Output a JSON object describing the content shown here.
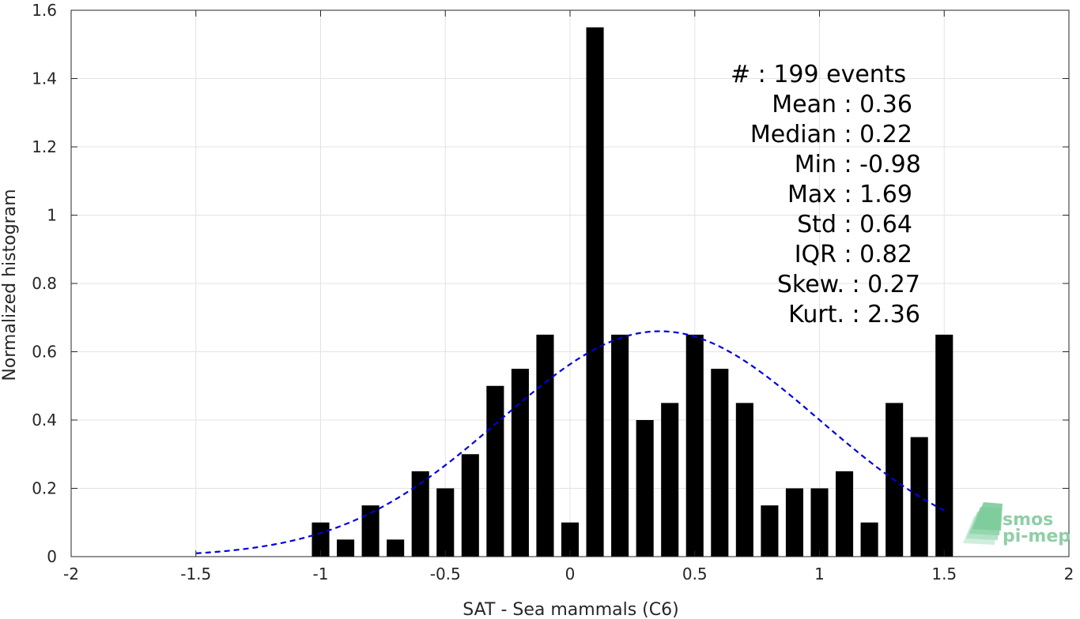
{
  "chart_data": {
    "type": "bar",
    "xlabel": "SAT - Sea mammals (C6)",
    "ylabel": "Normalized histogram",
    "xlim": [
      -2,
      2
    ],
    "ylim": [
      0,
      1.6
    ],
    "xticks": [
      -2,
      -1.5,
      -1,
      -0.5,
      0,
      0.5,
      1,
      1.5,
      2
    ],
    "xtick_labels": [
      "-2",
      "-1.5",
      "-1",
      "-0.5",
      "0",
      "0.5",
      "1",
      "1.5",
      "2"
    ],
    "yticks": [
      0,
      0.2,
      0.4,
      0.6,
      0.8,
      1,
      1.2,
      1.4,
      1.6
    ],
    "ytick_labels": [
      "0",
      "0.2",
      "0.4",
      "0.6",
      "0.8",
      "1",
      "1.2",
      "1.4",
      "1.6"
    ],
    "grid": true,
    "bar_width": 0.07,
    "bars": {
      "x": [
        -1.0,
        -0.9,
        -0.8,
        -0.7,
        -0.6,
        -0.5,
        -0.4,
        -0.3,
        -0.2,
        -0.1,
        0.0,
        0.1,
        0.2,
        0.3,
        0.4,
        0.5,
        0.6,
        0.7,
        0.8,
        0.9,
        1.0,
        1.1,
        1.2,
        1.3,
        1.4,
        1.5
      ],
      "values": [
        0.1,
        0.05,
        0.15,
        0.05,
        0.25,
        0.2,
        0.3,
        0.5,
        0.55,
        0.65,
        0.1,
        1.55,
        0.65,
        0.4,
        0.45,
        0.65,
        0.55,
        0.45,
        0.15,
        0.2,
        0.2,
        0.25,
        0.1,
        0.45,
        0.35,
        0.65
      ],
      "color": "#000000"
    },
    "fit": {
      "kind": "normal",
      "mean": 0.36,
      "std": 0.64,
      "peak": 0.66,
      "x_range": [
        -1.5,
        1.5
      ],
      "color": "#0000e0",
      "style": "dashed"
    },
    "stats": [
      {
        "label": "#",
        "sep": " : ",
        "value": "199 events"
      },
      {
        "label": "Mean",
        "sep": " : ",
        "value": "0.36"
      },
      {
        "label": "Median",
        "sep": " : ",
        "value": "0.22"
      },
      {
        "label": "Min",
        "sep": " : ",
        "value": "-0.98"
      },
      {
        "label": "Max",
        "sep": " : ",
        "value": "1.69"
      },
      {
        "label": "Std",
        "sep": " : ",
        "value": "0.64"
      },
      {
        "label": "IQR",
        "sep": " : ",
        "value": "0.82"
      },
      {
        "label": "Skew.",
        "sep": " : ",
        "value": "0.27"
      },
      {
        "label": "Kurt.",
        "sep": " : ",
        "value": "2.36"
      }
    ]
  },
  "logo": {
    "line1": "smos",
    "line2": "pi-mep",
    "color": "#8fcfa6"
  }
}
